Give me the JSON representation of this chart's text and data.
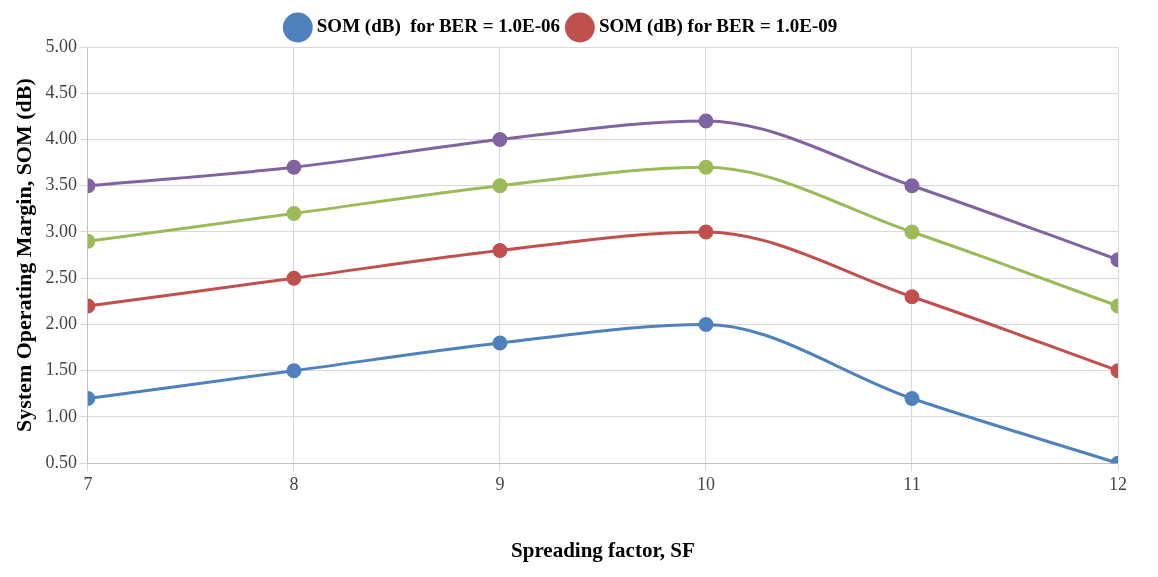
{
  "chart_data": {
    "type": "line",
    "xlabel": "Spreading factor, SF",
    "ylabel": "System Operating Margin, SOM (dB)",
    "x": [
      7,
      8,
      9,
      10,
      11,
      12
    ],
    "xlim": [
      7,
      12
    ],
    "xticks": [
      7,
      8,
      9,
      10,
      11,
      12
    ],
    "ylim": [
      0.5,
      5
    ],
    "yticks": [
      {
        "value": 0.5,
        "label": "0.50"
      },
      {
        "value": 1,
        "label": "1.00"
      },
      {
        "value": 1.5,
        "label": "1.50"
      },
      {
        "value": 2,
        "label": "2.00"
      },
      {
        "value": 2.5,
        "label": "2.50"
      },
      {
        "value": 3,
        "label": "3.00"
      },
      {
        "value": 3.5,
        "label": "3.50"
      },
      {
        "value": 4,
        "label": "4.00"
      },
      {
        "value": 4.5,
        "label": "4.50"
      },
      {
        "value": 5,
        "label": "5.00"
      }
    ],
    "grid": true,
    "legend": "top",
    "marker": "circle",
    "line_style": "solid",
    "series": [
      {
        "name": "SOM (dB)  for BER = 1.0E-06",
        "color": "#4f81bd",
        "values": [
          1.2,
          1.5,
          1.8,
          2.0,
          1.2,
          0.5
        ]
      },
      {
        "name": "SOM (dB) for BER = 1.0E-09",
        "color": "#c0504d",
        "values": [
          2.2,
          2.5,
          2.8,
          3.0,
          2.3,
          1.5
        ]
      },
      {
        "color": "#9bbb59",
        "values": [
          2.9,
          3.2,
          3.5,
          3.7,
          3.0,
          2.2
        ]
      },
      {
        "color": "#8064a2",
        "values": [
          3.5,
          3.7,
          4.0,
          4.2,
          3.5,
          2.7
        ]
      }
    ]
  }
}
